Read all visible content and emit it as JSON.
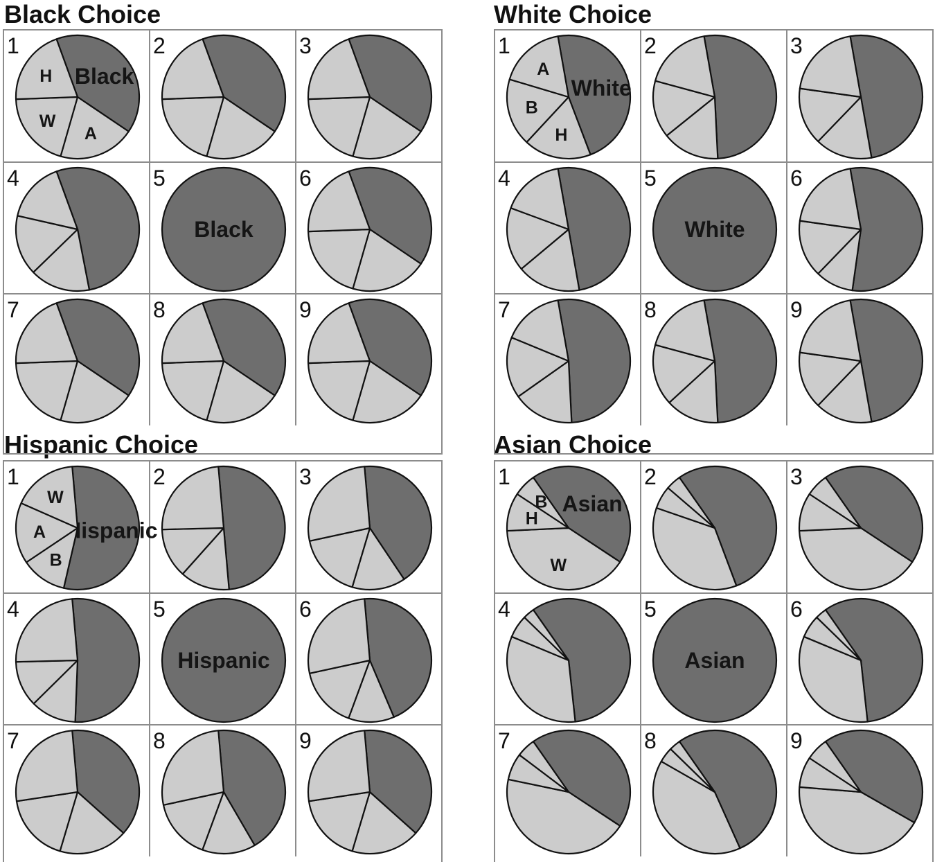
{
  "colors": {
    "own_group": "#6e6e6e",
    "other_groups": "#cccccc",
    "outline": "#111111",
    "grid": "#8c8c8c"
  },
  "chart_data": [
    {
      "type": "pie",
      "title": "Black Choice",
      "legend": "none",
      "first_slice_label": "Black",
      "cells": [
        {
          "id": "1",
          "slices": [
            {
              "label": "Black",
              "value": 0.4
            },
            {
              "label": "A",
              "value": 0.2
            },
            {
              "label": "W",
              "value": 0.2
            },
            {
              "label": "H",
              "value": 0.2
            }
          ]
        },
        {
          "id": "2",
          "slices": [
            {
              "value": 0.4
            },
            {
              "value": 0.2
            },
            {
              "value": 0.2
            },
            {
              "value": 0.2
            }
          ]
        },
        {
          "id": "3",
          "slices": [
            {
              "value": 0.4
            },
            {
              "value": 0.2
            },
            {
              "value": 0.2
            },
            {
              "value": 0.2
            }
          ]
        },
        {
          "id": "4",
          "slices": [
            {
              "value": 0.525
            },
            {
              "value": 0.158
            },
            {
              "value": 0.158
            },
            {
              "value": 0.159
            }
          ]
        },
        {
          "id": "5",
          "slices": [
            {
              "label": "Black",
              "value": 1.0
            }
          ]
        },
        {
          "id": "6",
          "slices": [
            {
              "value": 0.4
            },
            {
              "value": 0.2
            },
            {
              "value": 0.2
            },
            {
              "value": 0.2
            }
          ]
        },
        {
          "id": "7",
          "slices": [
            {
              "value": 0.4
            },
            {
              "value": 0.2
            },
            {
              "value": 0.2
            },
            {
              "value": 0.2
            }
          ]
        },
        {
          "id": "8",
          "slices": [
            {
              "value": 0.4
            },
            {
              "value": 0.2
            },
            {
              "value": 0.2
            },
            {
              "value": 0.2
            }
          ]
        },
        {
          "id": "9",
          "slices": [
            {
              "value": 0.4
            },
            {
              "value": 0.2
            },
            {
              "value": 0.2
            },
            {
              "value": 0.2
            }
          ]
        }
      ]
    },
    {
      "type": "pie",
      "title": "White Choice",
      "legend": "none",
      "first_slice_label": "White",
      "cells": [
        {
          "id": "1",
          "slices": [
            {
              "label": "White",
              "value": 0.47
            },
            {
              "label": "H",
              "value": 0.177
            },
            {
              "label": "B",
              "value": 0.177
            },
            {
              "label": "A",
              "value": 0.176
            }
          ]
        },
        {
          "id": "2",
          "slices": [
            {
              "value": 0.52
            },
            {
              "value": 0.15
            },
            {
              "value": 0.15
            },
            {
              "value": 0.18
            }
          ]
        },
        {
          "id": "3",
          "slices": [
            {
              "value": 0.5
            },
            {
              "value": 0.15
            },
            {
              "value": 0.15
            },
            {
              "value": 0.2
            }
          ]
        },
        {
          "id": "4",
          "slices": [
            {
              "value": 0.5
            },
            {
              "value": 0.167
            },
            {
              "value": 0.167
            },
            {
              "value": 0.166
            }
          ]
        },
        {
          "id": "5",
          "slices": [
            {
              "label": "White",
              "value": 1.0
            }
          ]
        },
        {
          "id": "6",
          "slices": [
            {
              "value": 0.55
            },
            {
              "value": 0.1
            },
            {
              "value": 0.15
            },
            {
              "value": 0.2
            }
          ]
        },
        {
          "id": "7",
          "slices": [
            {
              "value": 0.52
            },
            {
              "value": 0.16
            },
            {
              "value": 0.16
            },
            {
              "value": 0.16
            }
          ]
        },
        {
          "id": "8",
          "slices": [
            {
              "value": 0.52
            },
            {
              "value": 0.14
            },
            {
              "value": 0.16
            },
            {
              "value": 0.18
            }
          ]
        },
        {
          "id": "9",
          "slices": [
            {
              "value": 0.5
            },
            {
              "value": 0.15
            },
            {
              "value": 0.15
            },
            {
              "value": 0.2
            }
          ]
        }
      ]
    },
    {
      "type": "pie",
      "title": "Hispanic Choice",
      "legend": "none",
      "first_slice_label": "Hispanic",
      "cells": [
        {
          "id": "1",
          "slices": [
            {
              "label": "Hispanic",
              "value": 0.55
            },
            {
              "label": "B",
              "value": 0.12
            },
            {
              "label": "A",
              "value": 0.16
            },
            {
              "label": "W",
              "value": 0.17
            }
          ]
        },
        {
          "id": "2",
          "slices": [
            {
              "value": 0.5
            },
            {
              "value": 0.13
            },
            {
              "value": 0.13
            },
            {
              "value": 0.24
            }
          ]
        },
        {
          "id": "3",
          "slices": [
            {
              "value": 0.42
            },
            {
              "value": 0.14
            },
            {
              "value": 0.17
            },
            {
              "value": 0.27
            }
          ]
        },
        {
          "id": "4",
          "slices": [
            {
              "value": 0.52
            },
            {
              "value": 0.12
            },
            {
              "value": 0.12
            },
            {
              "value": 0.24
            }
          ]
        },
        {
          "id": "5",
          "slices": [
            {
              "label": "Hispanic",
              "value": 1.0
            }
          ]
        },
        {
          "id": "6",
          "slices": [
            {
              "value": 0.45
            },
            {
              "value": 0.12
            },
            {
              "value": 0.16
            },
            {
              "value": 0.27
            }
          ]
        },
        {
          "id": "7",
          "slices": [
            {
              "value": 0.38
            },
            {
              "value": 0.18
            },
            {
              "value": 0.18
            },
            {
              "value": 0.26
            }
          ]
        },
        {
          "id": "8",
          "slices": [
            {
              "value": 0.43
            },
            {
              "value": 0.14
            },
            {
              "value": 0.16
            },
            {
              "value": 0.27
            }
          ]
        },
        {
          "id": "9",
          "slices": [
            {
              "value": 0.38
            },
            {
              "value": 0.18
            },
            {
              "value": 0.18
            },
            {
              "value": 0.26
            }
          ]
        }
      ]
    },
    {
      "type": "pie",
      "title": "Asian Choice",
      "legend": "none",
      "first_slice_label": "Asian",
      "cells": [
        {
          "id": "1",
          "slices": [
            {
              "label": "Asian",
              "value": 0.44
            },
            {
              "label": "W",
              "value": 0.4
            },
            {
              "label": "H",
              "value": 0.1
            },
            {
              "label": "B",
              "value": 0.06
            }
          ]
        },
        {
          "id": "2",
          "slices": [
            {
              "value": 0.54
            },
            {
              "value": 0.36
            },
            {
              "value": 0.06
            },
            {
              "value": 0.04
            }
          ]
        },
        {
          "id": "3",
          "slices": [
            {
              "value": 0.44
            },
            {
              "value": 0.4
            },
            {
              "value": 0.1
            },
            {
              "value": 0.06
            }
          ]
        },
        {
          "id": "4",
          "slices": [
            {
              "value": 0.58
            },
            {
              "value": 0.33
            },
            {
              "value": 0.06
            },
            {
              "value": 0.03
            }
          ]
        },
        {
          "id": "5",
          "slices": [
            {
              "label": "Asian",
              "value": 1.0
            }
          ]
        },
        {
          "id": "6",
          "slices": [
            {
              "value": 0.58
            },
            {
              "value": 0.33
            },
            {
              "value": 0.06
            },
            {
              "value": 0.03
            }
          ]
        },
        {
          "id": "7",
          "slices": [
            {
              "value": 0.44
            },
            {
              "value": 0.44
            },
            {
              "value": 0.07
            },
            {
              "value": 0.05
            }
          ]
        },
        {
          "id": "8",
          "slices": [
            {
              "value": 0.53
            },
            {
              "value": 0.4
            },
            {
              "value": 0.04
            },
            {
              "value": 0.03
            }
          ]
        },
        {
          "id": "9",
          "slices": [
            {
              "value": 0.43
            },
            {
              "value": 0.43
            },
            {
              "value": 0.08
            },
            {
              "value": 0.06
            }
          ]
        }
      ]
    }
  ]
}
